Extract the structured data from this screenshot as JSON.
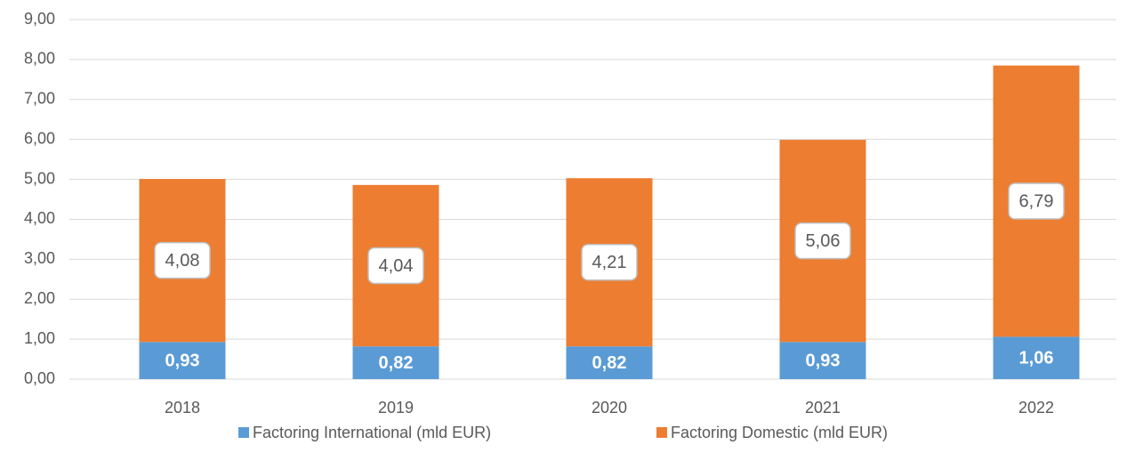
{
  "chart_data": {
    "type": "bar",
    "stacked": true,
    "categories": [
      "2018",
      "2019",
      "2020",
      "2021",
      "2022"
    ],
    "series": [
      {
        "name": "Factoring International (mld EUR)",
        "color": "#5b9bd5",
        "values": [
          0.93,
          0.82,
          0.82,
          0.93,
          1.06
        ],
        "value_labels": [
          "0,93",
          "0,82",
          "0,82",
          "0,93",
          "1,06"
        ]
      },
      {
        "name": "Factoring Domestic (mld EUR)",
        "color": "#ed7d31",
        "values": [
          4.08,
          4.04,
          4.21,
          5.06,
          6.79
        ],
        "value_labels": [
          "4,08",
          "4,04",
          "4,21",
          "5,06",
          "6,79"
        ]
      }
    ],
    "ylim": [
      0,
      9
    ],
    "yticks": [
      {
        "value": 0,
        "label": "0,00"
      },
      {
        "value": 1,
        "label": "1,00"
      },
      {
        "value": 2,
        "label": "2,00"
      },
      {
        "value": 3,
        "label": "3,00"
      },
      {
        "value": 4,
        "label": "4,00"
      },
      {
        "value": 5,
        "label": "5,00"
      },
      {
        "value": 6,
        "label": "6,00"
      },
      {
        "value": 7,
        "label": "7,00"
      },
      {
        "value": 8,
        "label": "8,00"
      },
      {
        "value": 9,
        "label": "9,00"
      }
    ],
    "grid": true,
    "legend": "bottom"
  }
}
